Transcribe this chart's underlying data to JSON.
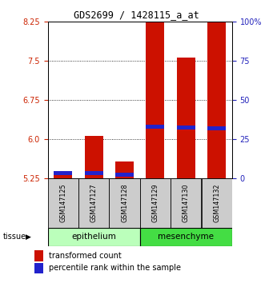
{
  "title": "GDS2699 / 1428115_a_at",
  "samples": [
    "GSM147125",
    "GSM147127",
    "GSM147128",
    "GSM147129",
    "GSM147130",
    "GSM147132"
  ],
  "red_values": [
    5.32,
    6.06,
    5.57,
    8.9,
    7.56,
    8.85
  ],
  "blue_values": [
    5.35,
    5.35,
    5.32,
    6.23,
    6.22,
    6.2
  ],
  "ymin": 5.25,
  "ymax": 8.25,
  "yticks_left": [
    5.25,
    6.0,
    6.75,
    7.5,
    8.25
  ],
  "yticks_right_labels": [
    "0",
    "25",
    "50",
    "75",
    "100%"
  ],
  "yticks_right_pct": [
    0,
    25,
    50,
    75,
    100
  ],
  "bar_color": "#cc1100",
  "blue_color": "#2222cc",
  "bar_width": 0.6,
  "tissue_label": "tissue",
  "legend_red": "transformed count",
  "legend_blue": "percentile rank within the sample",
  "left_axis_color": "#cc2200",
  "right_axis_color": "#2222bb",
  "sample_bg": "#cccccc",
  "epithelium_color": "#bbffbb",
  "mesenchyme_color": "#44dd44",
  "groups": [
    {
      "label": "epithelium",
      "start": 0,
      "end": 2
    },
    {
      "label": "mesenchyme",
      "start": 3,
      "end": 5
    }
  ]
}
